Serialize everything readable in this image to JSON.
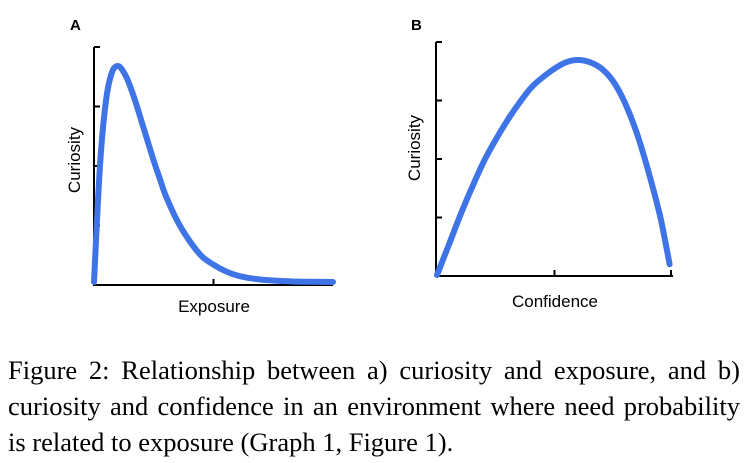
{
  "chart_data": [
    {
      "type": "line",
      "panel_label": "A",
      "xlabel": "Exposure",
      "ylabel": "Curiosity",
      "grid": false,
      "xlim": [
        0,
        10
      ],
      "ylim": [
        0,
        1
      ],
      "x_ticks": [
        5
      ],
      "y_ticks": [
        0.25,
        0.5,
        0.75,
        1.0
      ],
      "series": [
        {
          "x": [
            0,
            0.25,
            0.5,
            0.75,
            1.0,
            1.25,
            1.5,
            1.75,
            2.0,
            2.25,
            2.5,
            2.75,
            3.0,
            3.5,
            4.0,
            4.5,
            5.0,
            5.5,
            6.0,
            6.5,
            7.0,
            7.5,
            8.0,
            8.5,
            9.0,
            9.5,
            10.0
          ],
          "y": [
            0.0,
            0.54,
            0.84,
            0.97,
            1.0,
            0.97,
            0.91,
            0.83,
            0.74,
            0.65,
            0.56,
            0.48,
            0.4,
            0.28,
            0.19,
            0.12,
            0.08,
            0.05,
            0.03,
            0.018,
            0.011,
            0.007,
            0.004,
            0.002,
            0.001,
            0.0005,
            0.0
          ]
        }
      ],
      "color": "#3f74e6"
    },
    {
      "type": "line",
      "panel_label": "B",
      "xlabel": "Confidence",
      "ylabel": "Curiosity",
      "grid": false,
      "xlim": [
        0,
        1
      ],
      "ylim": [
        0,
        1
      ],
      "x_ticks": [
        0.5
      ],
      "y_ticks": [
        0.25,
        0.5,
        0.75,
        1.0
      ],
      "series": [
        {
          "x": [
            0.0,
            0.05,
            0.1,
            0.15,
            0.2,
            0.25,
            0.3,
            0.35,
            0.4,
            0.45,
            0.5,
            0.55,
            0.6,
            0.65,
            0.7,
            0.75,
            0.8,
            0.85,
            0.9,
            0.95,
            0.99
          ],
          "y": [
            0.0,
            0.14,
            0.28,
            0.41,
            0.53,
            0.63,
            0.72,
            0.8,
            0.87,
            0.92,
            0.96,
            0.99,
            1.0,
            0.99,
            0.96,
            0.9,
            0.8,
            0.66,
            0.48,
            0.27,
            0.05
          ]
        }
      ],
      "color": "#3f74e6"
    }
  ],
  "caption": "Figure 2: Relationship between a) curiosity and exposure, and b) curiosity and confidence in an environment where need probability is related to exposure (Graph 1, Figure 1)."
}
